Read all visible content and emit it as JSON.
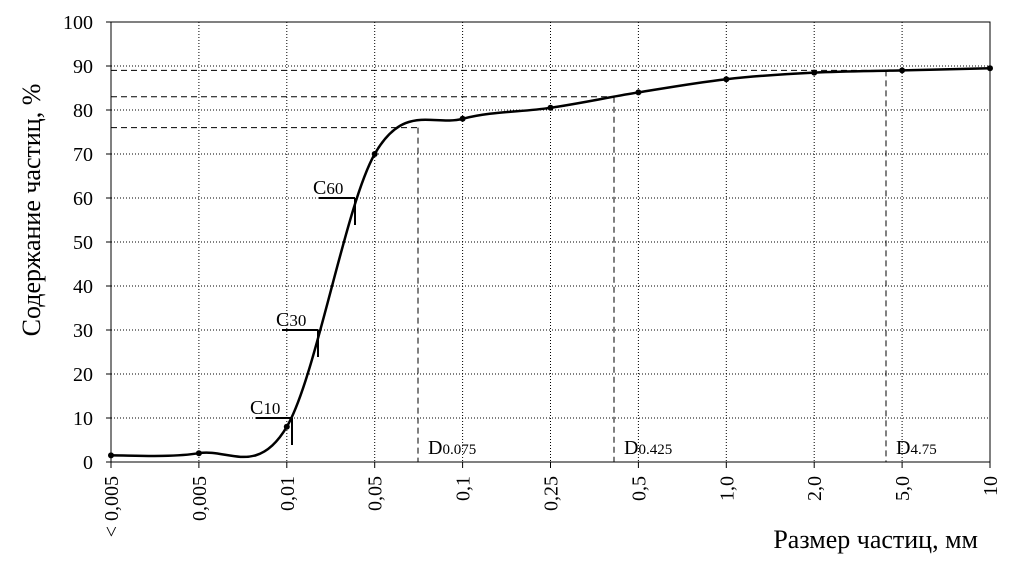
{
  "chart_data": {
    "type": "line",
    "y_label": "Содержание частиц, %",
    "x_label": "Размер частиц, мм",
    "categories": [
      "< 0,005",
      "0,005",
      "0,01",
      "0,05",
      "0,1",
      "0,25",
      "0,5",
      "1,0",
      "2,0",
      "5,0",
      "10"
    ],
    "values": [
      1.5,
      2,
      8,
      70,
      78,
      80.5,
      84,
      87,
      88.5,
      89,
      89.5
    ],
    "color": "#000000",
    "ylim": [
      0,
      100
    ],
    "yticks": [
      0,
      10,
      20,
      30,
      40,
      50,
      60,
      70,
      80,
      90,
      100
    ],
    "grid": true,
    "c_markers": [
      {
        "text": "C",
        "sub": "10",
        "value": 10
      },
      {
        "text": "C",
        "sub": "30",
        "value": 30
      },
      {
        "text": "C",
        "sub": "60",
        "value": 60
      }
    ],
    "d_markers": [
      {
        "text": "D",
        "sub": "0.075",
        "value": 76
      },
      {
        "text": "D",
        "sub": "0.425",
        "value": 83
      },
      {
        "text": "D",
        "sub": "4.75",
        "value": 89
      }
    ]
  }
}
